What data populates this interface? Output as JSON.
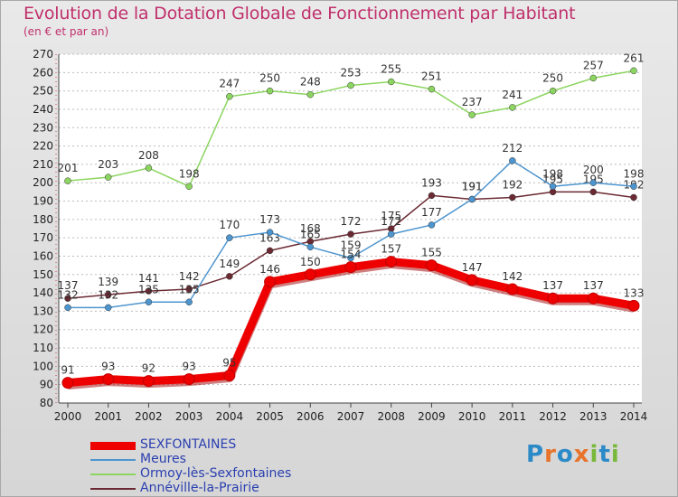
{
  "title": "Evolution de la Dotation Globale de Fonctionnement par Habitant",
  "subtitle": "(en € et par an)",
  "logo": {
    "text": "Proxiti",
    "letters": [
      "P",
      "r",
      "o",
      "x",
      "i",
      "t",
      "i"
    ],
    "colors": [
      "#2c8ac9",
      "#e8732a",
      "#2c8ac9",
      "#e8732a",
      "#79b83b",
      "#2c8ac9",
      "#79b83b"
    ]
  },
  "chart_data": {
    "type": "line",
    "title": "Evolution de la Dotation Globale de Fonctionnement par Habitant",
    "subtitle": "(en € et par an)",
    "xlabel": "",
    "ylabel": "",
    "x": [
      "2000",
      "2001",
      "2002",
      "2003",
      "2004",
      "2005",
      "2006",
      "2007",
      "2008",
      "2009",
      "2010",
      "2011",
      "2012",
      "2013",
      "2014"
    ],
    "ylim": [
      80,
      270
    ],
    "yticks": [
      "80",
      "90",
      "100",
      "110",
      "120",
      "130",
      "140",
      "150",
      "160",
      "170",
      "180",
      "190",
      "200",
      "210",
      "220",
      "230",
      "240",
      "250",
      "260",
      "270"
    ],
    "grid": "horizontal dotted",
    "legend_position": "bottom-left",
    "series": [
      {
        "name": "SEXFONTAINES",
        "color": "#ee0000",
        "values": [
          91,
          93,
          92,
          93,
          95,
          146,
          150,
          154,
          157,
          155,
          147,
          142,
          137,
          137,
          133
        ]
      },
      {
        "name": "Meures",
        "color": "#4d95cf",
        "values": [
          132,
          132,
          135,
          135,
          170,
          173,
          165,
          159,
          172,
          177,
          191,
          212,
          198,
          200,
          198
        ]
      },
      {
        "name": "Ormoy-lès-Sexfontaines",
        "color": "#8cd560",
        "values": [
          201,
          203,
          208,
          198,
          247,
          250,
          248,
          253,
          255,
          251,
          237,
          241,
          250,
          257,
          261
        ]
      },
      {
        "name": "Annéville-la-Prairie",
        "color": "#6b2a33",
        "values": [
          137,
          139,
          141,
          142,
          149,
          163,
          168,
          172,
          175,
          193,
          191,
          192,
          195,
          195,
          192
        ]
      }
    ]
  }
}
